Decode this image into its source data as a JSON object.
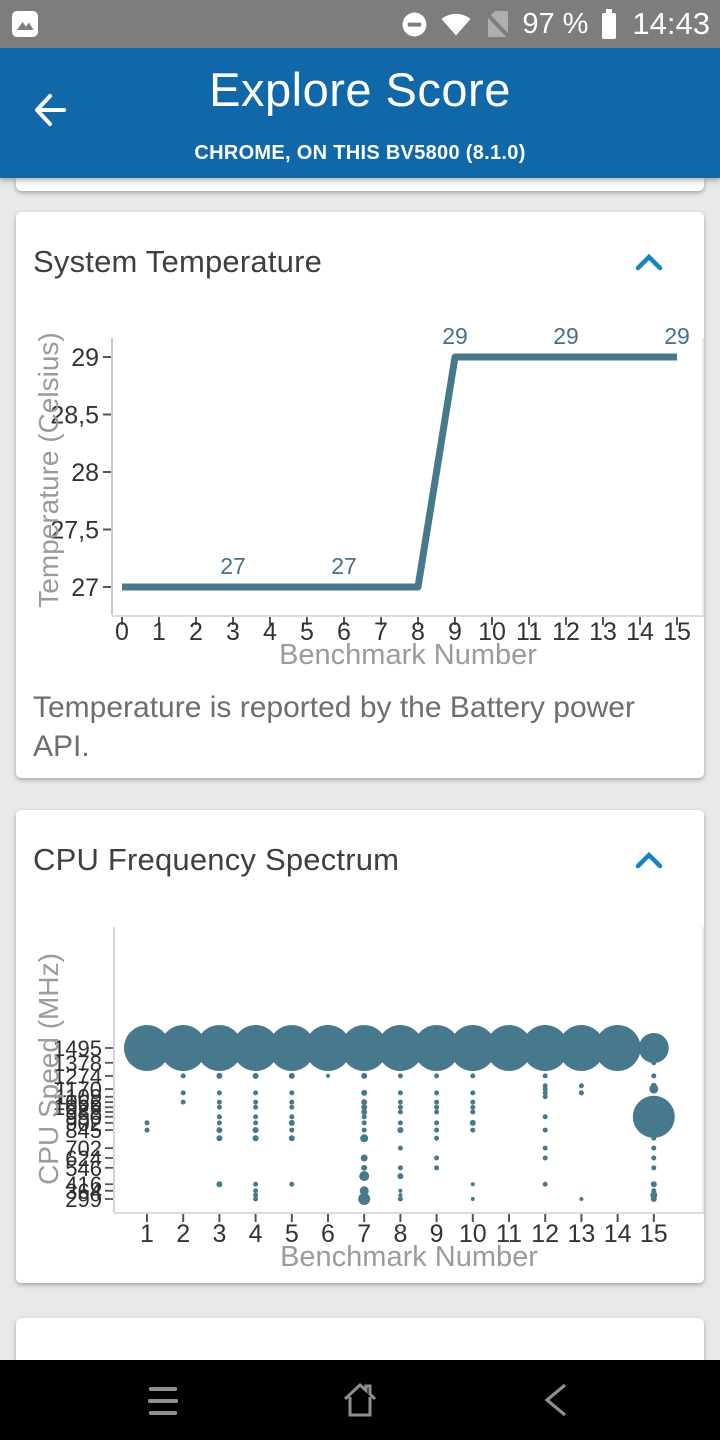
{
  "status_bar": {
    "time": "14:43",
    "battery_percent": "97 %",
    "notification_icon": "photo-thumbnail",
    "right_icons": [
      "do-not-disturb",
      "wifi-full",
      "no-sim",
      "battery-full"
    ]
  },
  "header": {
    "title": "Explore Score",
    "subtitle": "CHROME, ON THIS BV5800 (8.1.0)",
    "back_icon": "arrow-left"
  },
  "colors": {
    "header_blue": "#1168a9",
    "accent_blue": "#1884c4",
    "teal": "#47798c",
    "label_teal": "#44708c",
    "status_gray": "#7d7d7d",
    "nav_icon_gray": "#8f8f8f",
    "bg": "#e9e9e9",
    "tick_text": "#333333",
    "axis_title_gray": "#9b9b9b"
  },
  "cards": {
    "system_temperature": {
      "title": "System Temperature",
      "collapse_icon": "chevron-up",
      "description": "Temperature is reported by the Battery power API.",
      "chart_data": {
        "type": "line",
        "title": "System Temperature",
        "xlabel": "Benchmark Number",
        "ylabel": "Temperature (Celsius)",
        "x": [
          0,
          1,
          2,
          3,
          4,
          5,
          6,
          7,
          8,
          9,
          10,
          11,
          12,
          13,
          14,
          15
        ],
        "y": [
          27,
          27,
          27,
          27,
          27,
          27,
          27,
          27,
          27,
          29,
          29,
          29,
          29,
          29,
          29,
          29
        ],
        "point_labels": [
          {
            "x": 3,
            "text": "27"
          },
          {
            "x": 6,
            "text": "27"
          },
          {
            "x": 9,
            "text": "29"
          },
          {
            "x": 12,
            "text": "29"
          },
          {
            "x": 15,
            "text": "29"
          }
        ],
        "yticks": [
          {
            "value": 29,
            "label": "29"
          },
          {
            "value": 28.5,
            "label": "28,5"
          },
          {
            "value": 28,
            "label": "28"
          },
          {
            "value": 27.5,
            "label": "27,5"
          },
          {
            "value": 27,
            "label": "27"
          }
        ],
        "xticks": [
          0,
          1,
          2,
          3,
          4,
          5,
          6,
          7,
          8,
          9,
          10,
          11,
          12,
          13,
          14,
          15
        ],
        "ylim": [
          26.75,
          29.3
        ],
        "grid": false,
        "line_color": "#47798c",
        "label_color": "#44708c"
      }
    },
    "cpu_frequency_spectrum": {
      "title": "CPU Frequency Spectrum",
      "collapse_icon": "chevron-up",
      "chart_data": {
        "type": "bubble",
        "title": "CPU Frequency Spectrum",
        "xlabel": "Benchmark Number",
        "ylabel": "CPU Speed (MHz)",
        "xticks": [
          1,
          2,
          3,
          4,
          5,
          6,
          7,
          8,
          9,
          10,
          11,
          12,
          13,
          14,
          15
        ],
        "ytick_mhz": [
          1495,
          1378,
          1274,
          1170,
          1109,
          1066,
          1026,
          988,
          950,
          902,
          845,
          702,
          624,
          546,
          416,
          364,
          299
        ],
        "y_range_mhz": [
          299,
          1495
        ],
        "grid": false,
        "bubble_color": "#47798c",
        "bubbles": [
          {
            "x": 1,
            "points": [
              [
                1495,
                23
              ],
              [
                902,
                2.5
              ],
              [
                845,
                2.5
              ]
            ]
          },
          {
            "x": 2,
            "points": [
              [
                1495,
                23
              ],
              [
                1274,
                2.5
              ],
              [
                1140,
                2.5
              ],
              [
                1066,
                2.5
              ]
            ]
          },
          {
            "x": 3,
            "points": [
              [
                1495,
                23
              ],
              [
                1274,
                3
              ],
              [
                1140,
                2.5
              ],
              [
                1066,
                2.5
              ],
              [
                1026,
                2.5
              ],
              [
                950,
                2.5
              ],
              [
                902,
                2.5
              ],
              [
                845,
                3
              ],
              [
                780,
                3
              ],
              [
                416,
                3
              ]
            ]
          },
          {
            "x": 4,
            "points": [
              [
                1495,
                23
              ],
              [
                1274,
                3
              ],
              [
                1140,
                2.5
              ],
              [
                1066,
                2.5
              ],
              [
                1026,
                2.5
              ],
              [
                950,
                2.5
              ],
              [
                902,
                2.5
              ],
              [
                845,
                3
              ],
              [
                780,
                3
              ],
              [
                416,
                2.5
              ],
              [
                364,
                2.5
              ],
              [
                330,
                2.5
              ],
              [
                299,
                2.5
              ]
            ]
          },
          {
            "x": 5,
            "points": [
              [
                1495,
                23
              ],
              [
                1274,
                3
              ],
              [
                1140,
                2.5
              ],
              [
                1066,
                2.5
              ],
              [
                1026,
                2.5
              ],
              [
                950,
                2.5
              ],
              [
                902,
                3
              ],
              [
                845,
                2.5
              ],
              [
                780,
                3
              ],
              [
                416,
                2.5
              ]
            ]
          },
          {
            "x": 6,
            "points": [
              [
                1495,
                23
              ],
              [
                1274,
                2
              ]
            ]
          },
          {
            "x": 7,
            "points": [
              [
                1495,
                23
              ],
              [
                1274,
                3
              ],
              [
                1140,
                3
              ],
              [
                1066,
                3
              ],
              [
                1026,
                3
              ],
              [
                988,
                3
              ],
              [
                950,
                2.5
              ],
              [
                902,
                2.5
              ],
              [
                845,
                2.5
              ],
              [
                780,
                4
              ],
              [
                624,
                3.5
              ],
              [
                546,
                3
              ],
              [
                480,
                5
              ],
              [
                364,
                4.5
              ],
              [
                299,
                6
              ]
            ]
          },
          {
            "x": 8,
            "points": [
              [
                1495,
                23
              ],
              [
                1274,
                2.5
              ],
              [
                1140,
                2.5
              ],
              [
                1066,
                2.5
              ],
              [
                1026,
                2.5
              ],
              [
                988,
                2.5
              ],
              [
                902,
                2.5
              ],
              [
                845,
                3
              ],
              [
                702,
                2.5
              ],
              [
                546,
                2.5
              ],
              [
                480,
                3
              ],
              [
                364,
                2
              ],
              [
                330,
                2
              ],
              [
                299,
                2.5
              ]
            ]
          },
          {
            "x": 9,
            "points": [
              [
                1495,
                23
              ],
              [
                1274,
                2.5
              ],
              [
                1140,
                2.5
              ],
              [
                1066,
                2.5
              ],
              [
                1026,
                2.5
              ],
              [
                988,
                2.5
              ],
              [
                902,
                2.5
              ],
              [
                845,
                2.5
              ],
              [
                780,
                2.5
              ],
              [
                624,
                2.5
              ],
              [
                546,
                2.5
              ]
            ]
          },
          {
            "x": 10,
            "points": [
              [
                1495,
                23
              ],
              [
                1274,
                2.5
              ],
              [
                1140,
                2.5
              ],
              [
                1066,
                2.5
              ],
              [
                1026,
                2.5
              ],
              [
                988,
                2.5
              ],
              [
                902,
                3
              ],
              [
                845,
                2.5
              ],
              [
                416,
                2
              ],
              [
                299,
                2
              ]
            ]
          },
          {
            "x": 11,
            "points": [
              [
                1495,
                23
              ],
              [
                1378,
                2
              ]
            ]
          },
          {
            "x": 12,
            "points": [
              [
                1495,
                23
              ],
              [
                1378,
                2.5
              ],
              [
                1274,
                2.5
              ],
              [
                1196,
                2.5
              ],
              [
                1170,
                2.5
              ],
              [
                1140,
                2.5
              ],
              [
                1109,
                2.5
              ],
              [
                950,
                2.5
              ],
              [
                845,
                2.5
              ],
              [
                702,
                2.5
              ],
              [
                624,
                2.5
              ],
              [
                416,
                2.5
              ]
            ]
          },
          {
            "x": 13,
            "points": [
              [
                1495,
                23
              ],
              [
                1196,
                2.5
              ],
              [
                1140,
                2.5
              ],
              [
                299,
                2
              ]
            ]
          },
          {
            "x": 14,
            "points": [
              [
                1495,
                23
              ]
            ]
          },
          {
            "x": 15,
            "points": [
              [
                1495,
                15
              ],
              [
                1378,
                2.5
              ],
              [
                1274,
                2.5
              ],
              [
                1196,
                3
              ],
              [
                1170,
                4.5
              ],
              [
                950,
                21
              ],
              [
                780,
                2.5
              ],
              [
                702,
                2.5
              ],
              [
                624,
                2.5
              ],
              [
                546,
                2.5
              ],
              [
                416,
                3
              ],
              [
                364,
                2.5
              ],
              [
                330,
                3.5
              ],
              [
                299,
                3
              ]
            ]
          }
        ]
      }
    }
  },
  "nav_bar": {
    "buttons": [
      "recent-apps",
      "home",
      "back"
    ]
  }
}
